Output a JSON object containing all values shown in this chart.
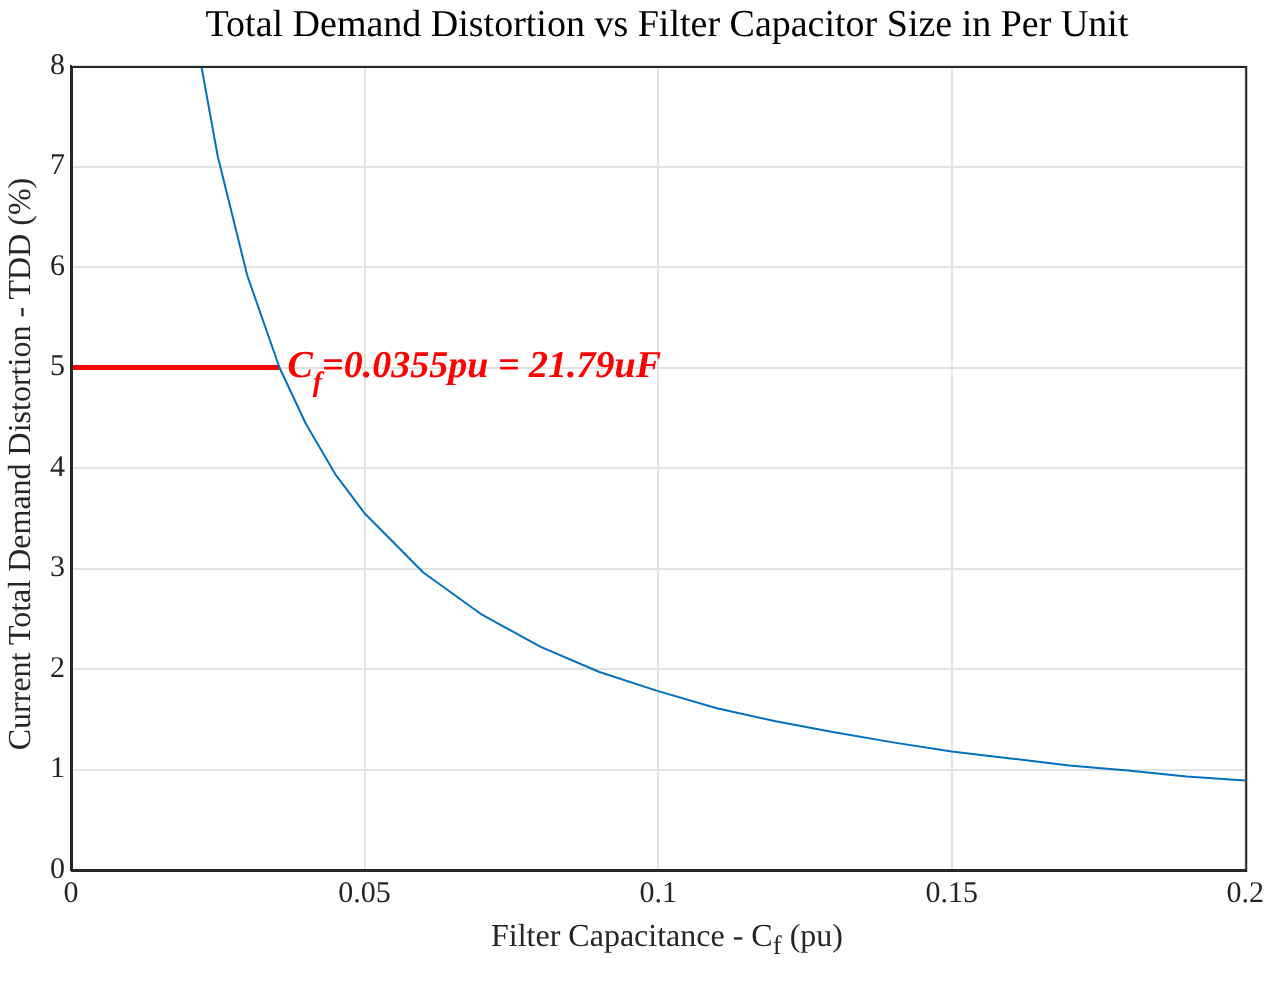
{
  "chart_data": {
    "type": "line",
    "title": "Total Demand Distortion vs Filter Capacitor Size in Per Unit",
    "xlabel": "Filter Capacitance - C$_{f}$ (pu)",
    "ylabel": "Current Total Demand Distortion - TDD (%)",
    "series": [
      {
        "color": "#0072bd",
        "x": [
          0.0222,
          0.025,
          0.03,
          0.0355,
          0.04,
          0.045,
          0.05,
          0.06,
          0.07,
          0.08,
          0.09,
          0.1,
          0.11,
          0.12,
          0.13,
          0.14,
          0.15,
          0.16,
          0.17,
          0.18,
          0.19,
          0.2
        ],
        "values": [
          8.0,
          7.1,
          5.92,
          5.0,
          4.44,
          3.94,
          3.55,
          2.96,
          2.54,
          2.22,
          1.97,
          1.78,
          1.61,
          1.48,
          1.37,
          1.27,
          1.18,
          1.11,
          1.04,
          0.99,
          0.93,
          0.89
        ]
      },
      {
        "color": "#ff0000",
        "x": [
          0,
          0.0355
        ],
        "values": [
          5,
          5
        ]
      }
    ],
    "annotations": [
      {
        "text": "C$_{f}$=0.0355pu = 21.79uF",
        "x": 0.0355,
        "y": 5
      }
    ],
    "xlim": [
      0,
      0.2
    ],
    "xticks": [
      0,
      0.05,
      0.1,
      0.15,
      0.2
    ],
    "ylim": [
      0,
      8
    ],
    "yticks": [
      0,
      1,
      2,
      3,
      4,
      5,
      6,
      7,
      8
    ],
    "grid": true,
    "legend": false
  }
}
